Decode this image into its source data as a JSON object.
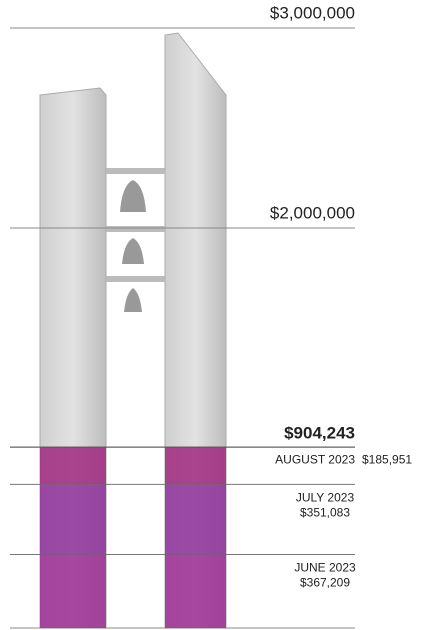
{
  "chart_data": {
    "type": "stacked-bar",
    "series": [
      {
        "name": "JUNE 2023",
        "color": "#9c2c93",
        "values": [
          367209
        ],
        "value_labels": [
          "$367,209"
        ]
      },
      {
        "name": "JULY 2023",
        "color": "#8e2f9a",
        "values": [
          351083
        ],
        "value_labels": [
          "$351,083"
        ]
      },
      {
        "name": "AUGUST 2023",
        "color": "#a0287f",
        "values": [
          185951
        ],
        "value_labels": [
          "$185,951"
        ]
      }
    ],
    "total": 904243,
    "total_label": "$904,243",
    "ylim": [
      0,
      3000000
    ],
    "yticks": [
      {
        "value": 2000000,
        "label": "$2,000,000"
      },
      {
        "value": 3000000,
        "label": "$3,000,000"
      }
    ]
  }
}
